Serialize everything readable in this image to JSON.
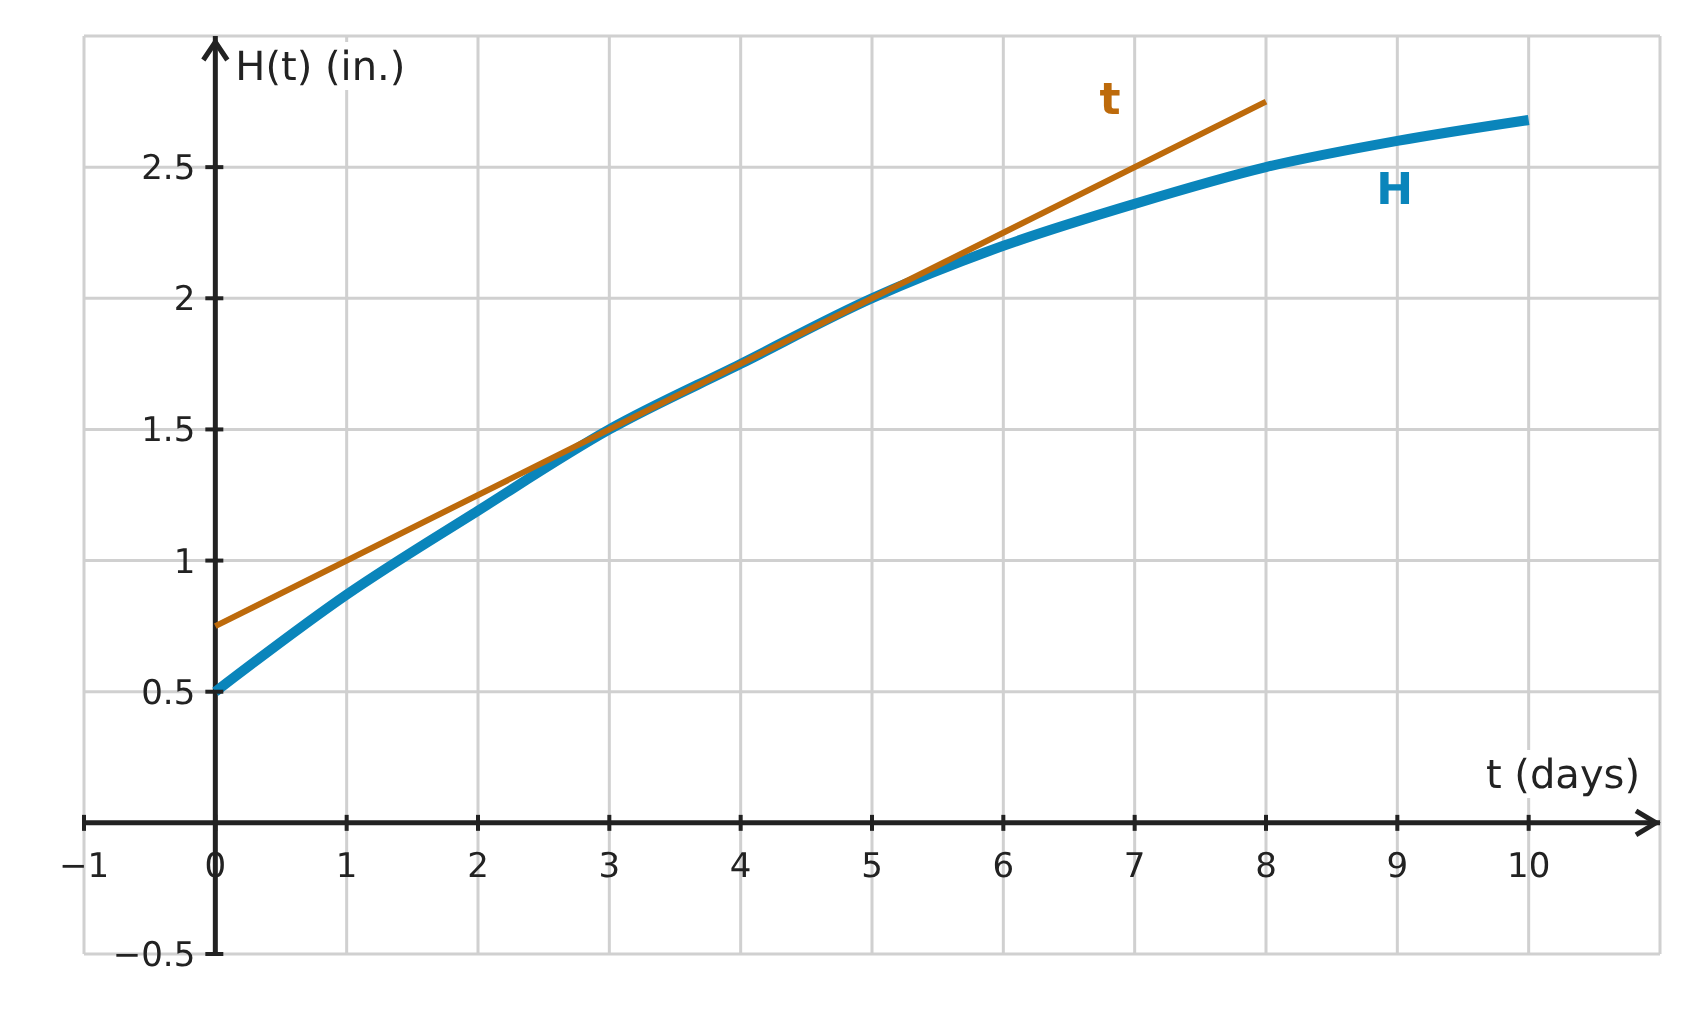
{
  "chart_data": {
    "type": "line",
    "xlabel": "t (days)",
    "ylabel": "H(t) (in.)",
    "xlim": [
      -1,
      11
    ],
    "ylim": [
      -0.5,
      3
    ],
    "xticks": [
      {
        "value": -1,
        "label": "−1"
      },
      0,
      1,
      2,
      3,
      4,
      5,
      6,
      7,
      8,
      9,
      10
    ],
    "yticks": [
      {
        "value": -0.5,
        "label": "−0.5"
      },
      0.5,
      1,
      1.5,
      2,
      2.5
    ],
    "grid": true,
    "marker": "none",
    "line_style": "solid",
    "series": [
      {
        "name": "H",
        "color": "#0a85bb",
        "x": [
          0,
          1,
          2,
          3,
          4,
          5,
          6,
          7,
          8,
          9,
          10
        ],
        "values": [
          0.5,
          0.87,
          1.19,
          1.5,
          1.75,
          2.0,
          2.2,
          2.36,
          2.5,
          2.6,
          2.68
        ]
      },
      {
        "name": "t",
        "type": "line",
        "color": "#bd6a0b",
        "x": [
          0,
          8
        ],
        "values": [
          0.75,
          2.75
        ]
      }
    ]
  }
}
